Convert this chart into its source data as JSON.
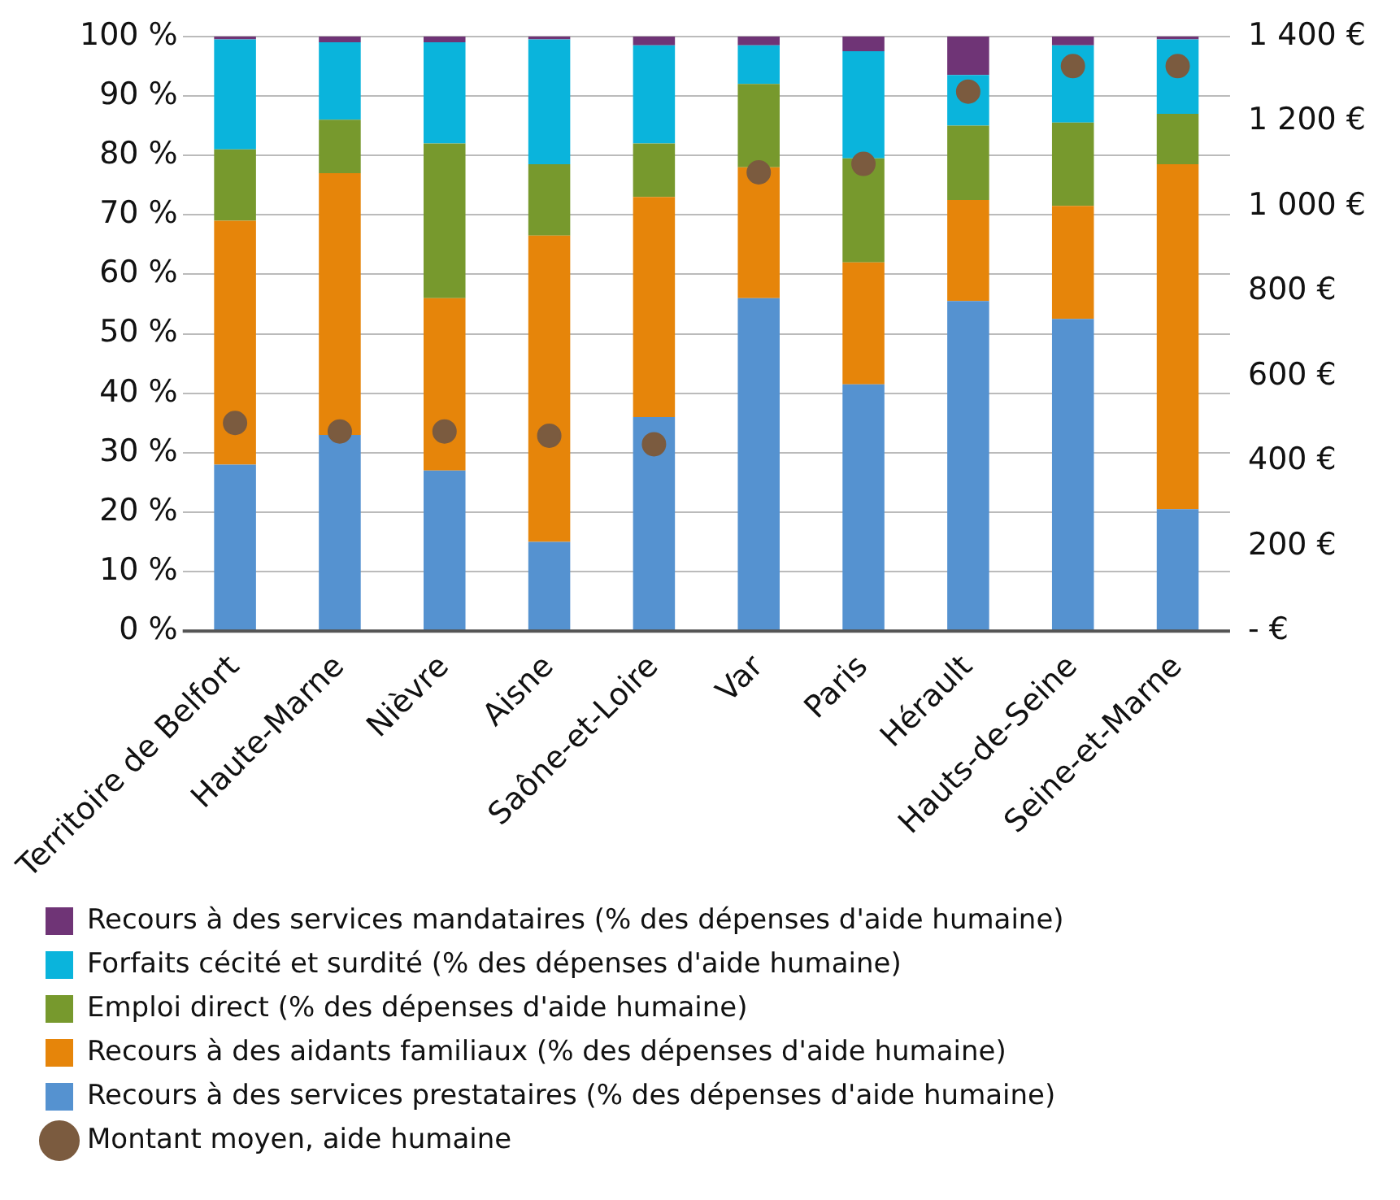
{
  "chart_data": {
    "type": "bar",
    "stacked": true,
    "categories": [
      "Territoire de Belfort",
      "Haute-Marne",
      "Nièvre",
      "Aisne",
      "Saône-et-Loire",
      "Var",
      "Paris",
      "Hérault",
      "Hauts-de-Seine",
      "Seine-et-Marne"
    ],
    "series": [
      {
        "name": "Recours à des services prestataires (% des dépenses d'aide humaine)",
        "color": "#5592d0",
        "values": [
          28,
          33,
          27,
          15,
          36,
          56,
          41.5,
          55.5,
          52.5,
          20.5
        ]
      },
      {
        "name": "Recours à des aidants familiaux (% des dépenses d'aide humaine)",
        "color": "#e6850a",
        "values": [
          41,
          44,
          29,
          51.5,
          37,
          22,
          20.5,
          17,
          19,
          58
        ]
      },
      {
        "name": "Emploi direct (% des dépenses d'aide humaine)",
        "color": "#77992d",
        "values": [
          12,
          9,
          26,
          12,
          9,
          14,
          17.5,
          12.5,
          14,
          8.5
        ]
      },
      {
        "name": "Forfaits cécité et surdité (% des dépenses d'aide humaine)",
        "color": "#0ab4dc",
        "values": [
          18.5,
          13,
          17,
          21,
          16.5,
          6.5,
          18,
          8.5,
          13,
          12.5
        ]
      },
      {
        "name": "Recours à des services mandataires (% des dépenses d'aide humaine)",
        "color": "#6f3476",
        "values": [
          0.5,
          1,
          1,
          0.5,
          1.5,
          1.5,
          2.5,
          6.5,
          1.5,
          0.5
        ]
      },
      {
        "name": "Montant moyen, aide humaine",
        "type": "scatter",
        "axis": "y2",
        "color": "#7b5b3f",
        "values": [
          490,
          470,
          470,
          460,
          440,
          1080,
          1100,
          1270,
          1330,
          1330
        ]
      }
    ],
    "ylim": [
      0,
      100
    ],
    "yticks": [
      {
        "value": 0,
        "label": "0 %"
      },
      {
        "value": 10,
        "label": "10 %"
      },
      {
        "value": 20,
        "label": "20 %"
      },
      {
        "value": 30,
        "label": "30 %"
      },
      {
        "value": 40,
        "label": "40 %"
      },
      {
        "value": 50,
        "label": "50 %"
      },
      {
        "value": 60,
        "label": "60 %"
      },
      {
        "value": 70,
        "label": "70 %"
      },
      {
        "value": 80,
        "label": "80 %"
      },
      {
        "value": 90,
        "label": "90 %"
      },
      {
        "value": 100,
        "label": "100 %"
      }
    ],
    "y2lim": [
      0,
      1400
    ],
    "y2ticks": [
      {
        "value": 0,
        "label": "- €"
      },
      {
        "value": 200,
        "label": "200 €"
      },
      {
        "value": 400,
        "label": "400 €"
      },
      {
        "value": 600,
        "label": "600 €"
      },
      {
        "value": 800,
        "label": "800 €"
      },
      {
        "value": 1000,
        "label": "1 000 €"
      },
      {
        "value": 1200,
        "label": "1 200 €"
      },
      {
        "value": 1400,
        "label": "1 400 €"
      }
    ],
    "grid": "y",
    "legend": "bottom",
    "marker": "circle"
  }
}
